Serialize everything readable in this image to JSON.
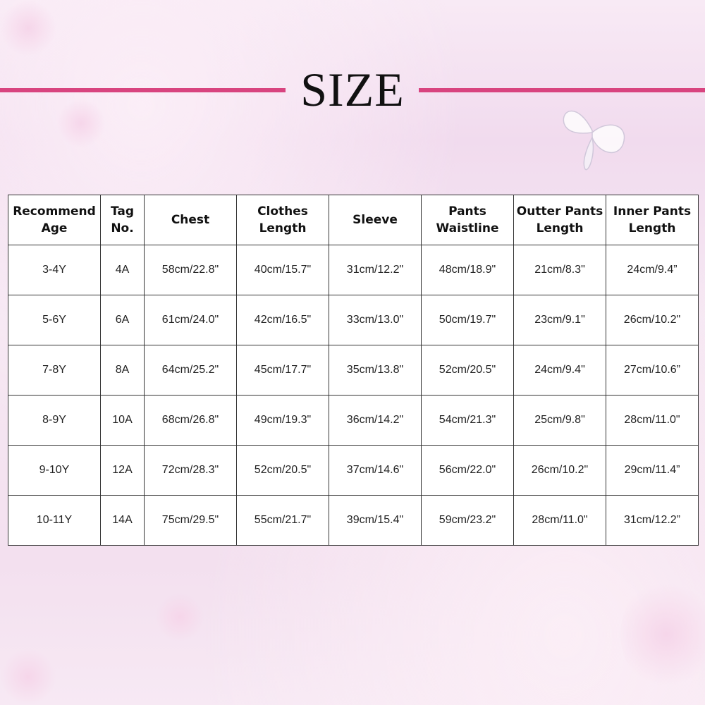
{
  "title": "SIZE",
  "accent_color": "#d8447f",
  "table": {
    "headers": [
      [
        "Recommend",
        "Age"
      ],
      [
        "Tag",
        "No."
      ],
      [
        "Chest",
        ""
      ],
      [
        "Clothes",
        "Length"
      ],
      [
        "Sleeve",
        ""
      ],
      [
        "Pants",
        "Waistline"
      ],
      [
        "Outter Pants",
        "Length"
      ],
      [
        "Inner Pants",
        "Length"
      ]
    ],
    "rows": [
      [
        "3-4Y",
        "4A",
        "58cm/22.8\"",
        "40cm/15.7\"",
        "31cm/12.2\"",
        "48cm/18.9\"",
        "21cm/8.3\"",
        "24cm/9.4”"
      ],
      [
        "5-6Y",
        "6A",
        "61cm/24.0\"",
        "42cm/16.5\"",
        "33cm/13.0\"",
        "50cm/19.7\"",
        "23cm/9.1\"",
        "26cm/10.2\""
      ],
      [
        "7-8Y",
        "8A",
        "64cm/25.2\"",
        "45cm/17.7\"",
        "35cm/13.8\"",
        "52cm/20.5\"",
        "24cm/9.4\"",
        "27cm/10.6”"
      ],
      [
        "8-9Y",
        "10A",
        "68cm/26.8\"",
        "49cm/19.3\"",
        "36cm/14.2\"",
        "54cm/21.3\"",
        "25cm/9.8\"",
        "28cm/11.0\""
      ],
      [
        "9-10Y",
        "12A",
        "72cm/28.3\"",
        "52cm/20.5\"",
        "37cm/14.6\"",
        "56cm/22.0\"",
        "26cm/10.2\"",
        "29cm/11.4”"
      ],
      [
        "10-11Y",
        "14A",
        "75cm/29.5\"",
        "55cm/21.7\"",
        "39cm/15.4\"",
        "59cm/23.2\"",
        "28cm/11.0\"",
        "31cm/12.2”"
      ]
    ]
  }
}
